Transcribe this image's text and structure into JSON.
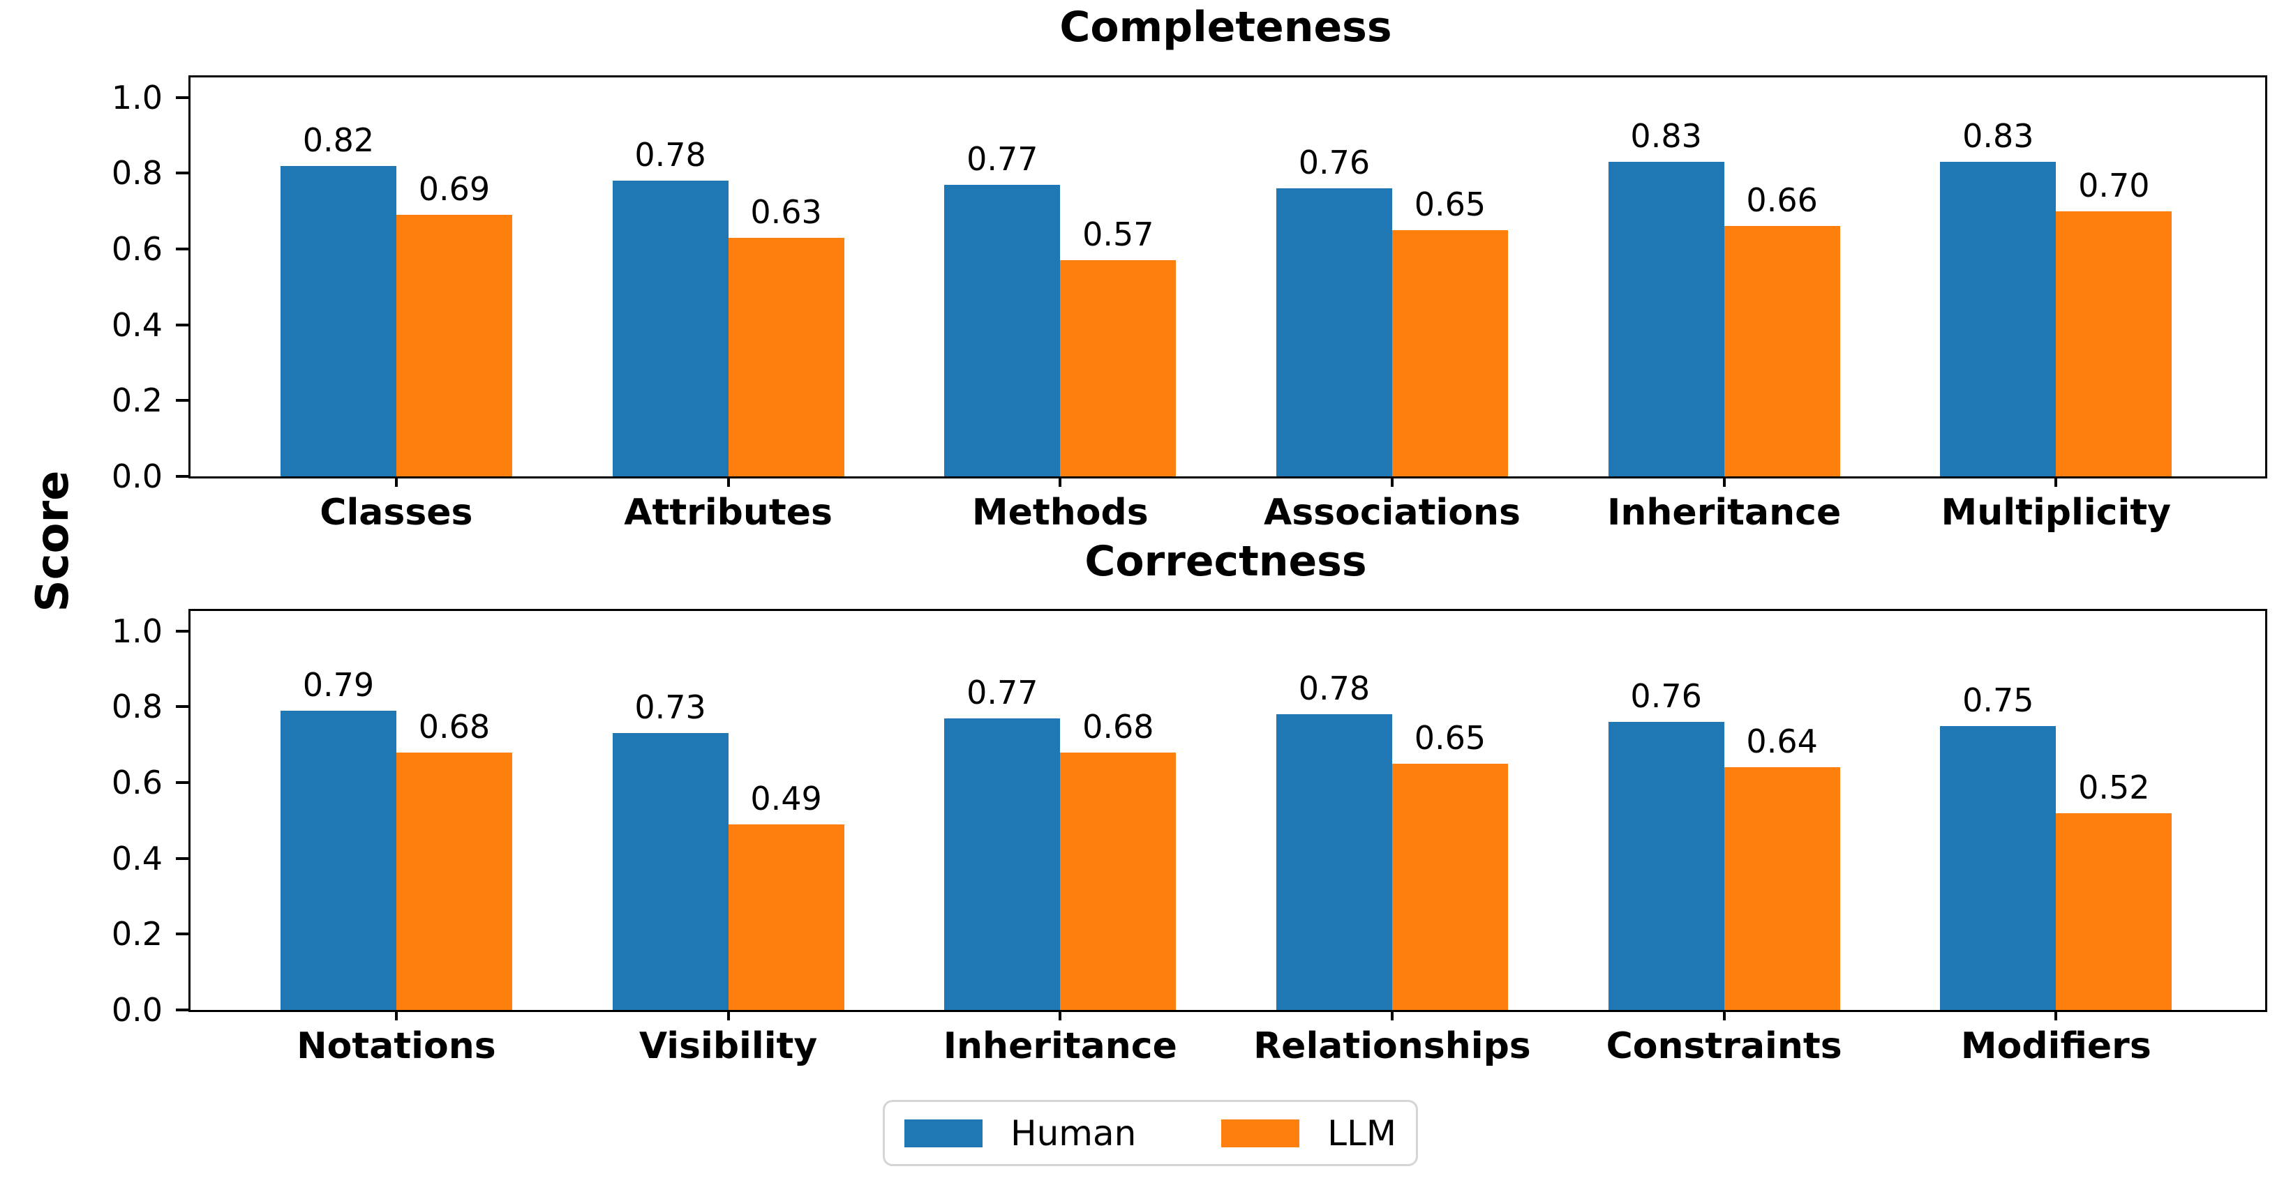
{
  "figure": {
    "ylabel": "Score",
    "background": "#ffffff"
  },
  "legend": {
    "items": [
      {
        "label": "Human",
        "color": "#1f77b4"
      },
      {
        "label": "LLM",
        "color": "#ff7f0e"
      }
    ]
  },
  "chart_data": [
    {
      "type": "bar",
      "title": "Completeness",
      "categories": [
        "Classes",
        "Attributes",
        "Methods",
        "Associations",
        "Inheritance",
        "Multiplicity"
      ],
      "series": [
        {
          "name": "Human",
          "color": "#1f77b4",
          "values": [
            0.82,
            0.78,
            0.77,
            0.76,
            0.83,
            0.83
          ],
          "labels": [
            "0.82",
            "0.78",
            "0.77",
            "0.76",
            "0.83",
            "0.83"
          ]
        },
        {
          "name": "LLM",
          "color": "#ff7f0e",
          "values": [
            0.69,
            0.63,
            0.57,
            0.65,
            0.66,
            0.7
          ],
          "labels": [
            "0.69",
            "0.63",
            "0.57",
            "0.65",
            "0.66",
            "0.70"
          ]
        }
      ],
      "xlabel": "",
      "ylabel": "Score",
      "yticks": [
        0.0,
        0.2,
        0.4,
        0.6,
        0.8,
        1.0
      ],
      "ytick_labels": [
        "0.0",
        "0.2",
        "0.4",
        "0.6",
        "0.8",
        "1.0"
      ],
      "ylim": [
        0,
        1.053
      ],
      "grid": false,
      "bar_labels": true,
      "legend_position": "figure-bottom-center"
    },
    {
      "type": "bar",
      "title": "Correctness",
      "categories": [
        "Notations",
        "Visibility",
        "Inheritance",
        "Relationships",
        "Constraints",
        "Modifiers"
      ],
      "series": [
        {
          "name": "Human",
          "color": "#1f77b4",
          "values": [
            0.79,
            0.73,
            0.77,
            0.78,
            0.76,
            0.75
          ],
          "labels": [
            "0.79",
            "0.73",
            "0.77",
            "0.78",
            "0.76",
            "0.75"
          ]
        },
        {
          "name": "LLM",
          "color": "#ff7f0e",
          "values": [
            0.68,
            0.49,
            0.68,
            0.65,
            0.64,
            0.52
          ],
          "labels": [
            "0.68",
            "0.49",
            "0.68",
            "0.65",
            "0.64",
            "0.52"
          ]
        }
      ],
      "xlabel": "",
      "ylabel": "Score",
      "yticks": [
        0.0,
        0.2,
        0.4,
        0.6,
        0.8,
        1.0
      ],
      "ytick_labels": [
        "0.0",
        "0.2",
        "0.4",
        "0.6",
        "0.8",
        "1.0"
      ],
      "ylim": [
        0,
        1.053
      ],
      "grid": false,
      "bar_labels": true,
      "legend_position": "figure-bottom-center"
    }
  ]
}
